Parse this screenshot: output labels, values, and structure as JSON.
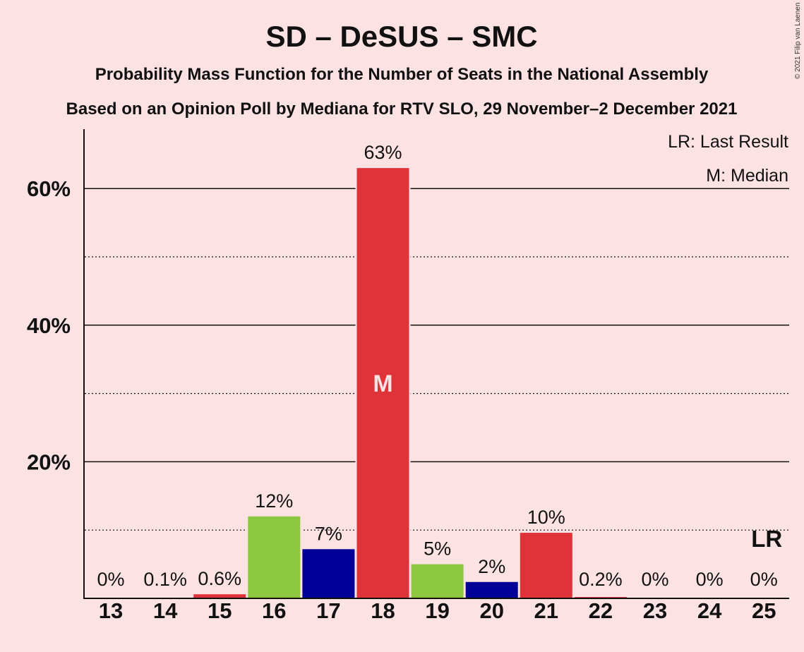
{
  "title": "SD – DeSUS – SMC",
  "subtitle1": "Probability Mass Function for the Number of Seats in the National Assembly",
  "subtitle2": "Based on an Opinion Poll by Mediana for RTV SLO, 29 November–2 December 2021",
  "legend": {
    "lr": "LR: Last Result",
    "m": "M: Median"
  },
  "copyright": "© 2021 Filip van Laenen",
  "median_mark": "M",
  "last_result_mark": "LR",
  "colors": {
    "background": "#fde2e3",
    "red": "#e03339",
    "green": "#8dc73f",
    "blue": "#000099"
  },
  "chart_data": {
    "type": "bar",
    "categories": [
      "13",
      "14",
      "15",
      "16",
      "17",
      "18",
      "19",
      "20",
      "21",
      "22",
      "23",
      "24",
      "25"
    ],
    "values": [
      0,
      0.1,
      0.6,
      12,
      7.2,
      63,
      5,
      2.4,
      9.6,
      0.2,
      0,
      0,
      0
    ],
    "labels": [
      "0%",
      "0.1%",
      "0.6%",
      "12%",
      "7%",
      "63%",
      "5%",
      "2%",
      "10%",
      "0.2%",
      "0%",
      "0%",
      "0%"
    ],
    "bar_colors": [
      "red",
      "red",
      "red",
      "green",
      "blue",
      "red",
      "green",
      "blue",
      "red",
      "red",
      "red",
      "red",
      "red"
    ],
    "ylim": [
      0,
      68
    ],
    "yticks_major": [
      20,
      40,
      60
    ],
    "ytick_labels": [
      "20%",
      "40%",
      "60%"
    ],
    "yticks_minor": [
      10,
      30,
      50
    ],
    "median_category": "18",
    "last_result_category": "25",
    "xlabel": "",
    "ylabel": ""
  }
}
